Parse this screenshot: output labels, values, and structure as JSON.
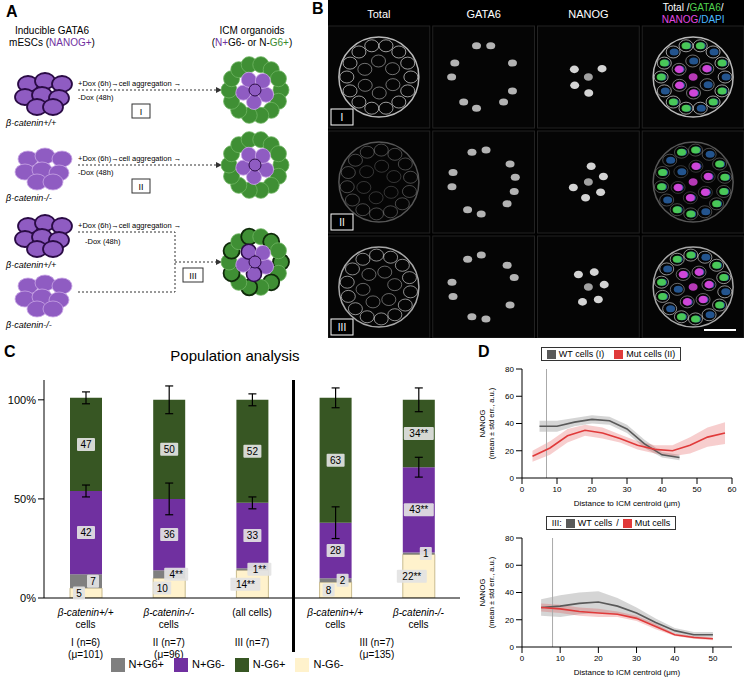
{
  "panel_a": {
    "letter": "A",
    "left_title": [
      [
        {
          "text": "Inducible GATA6",
          "color": "#000000"
        }
      ],
      [
        {
          "text": "mESCs (",
          "color": "#000000"
        },
        {
          "text": "NANOG+",
          "color": "#7030a0"
        },
        {
          "text": ")",
          "color": "#000000"
        }
      ]
    ],
    "right_title": [
      [
        {
          "text": "ICM organoids",
          "color": "#000000"
        }
      ],
      [
        {
          "text": "(",
          "color": "#000000"
        },
        {
          "text": "N+",
          "color": "#7030a0"
        },
        {
          "text": "G6- or N-",
          "color": "#000000"
        },
        {
          "text": "G6+",
          "color": "#3a8a2e"
        },
        {
          "text": ")",
          "color": "#000000"
        }
      ]
    ],
    "rows": [
      {
        "label": "I",
        "genotypes": [
          "β-catenin+/+"
        ],
        "arrow_text": [
          "+Dox (6h)→cell aggregation →",
          "-Dox (48h)"
        ]
      },
      {
        "label": "II",
        "genotypes": [
          "β-catenin-/-"
        ],
        "arrow_text": [
          "+Dox (6h)→cell aggregation →",
          "-Dox (48h)"
        ]
      },
      {
        "label": "III",
        "genotypes": [
          "β-catenin+/+",
          "β-catenin-/-"
        ],
        "arrow_text": [
          "+Dox (6h)→cell aggregation →",
          "-Dox (48h)"
        ]
      }
    ]
  },
  "panel_b": {
    "letter": "B",
    "columns": [
      "Total",
      "GATA6",
      "NANOG"
    ],
    "merge_column": [
      [
        {
          "text": "Total /",
          "color": "#ffffff"
        },
        {
          "text": "GATA6",
          "color": "#4fd14f"
        },
        {
          "text": "/",
          "color": "#ffffff"
        }
      ],
      [
        {
          "text": "NANOG",
          "color": "#e048e0"
        },
        {
          "text": "/DAPI",
          "color": "#48b8ff"
        }
      ]
    ],
    "rows": [
      "I",
      "II",
      "III"
    ]
  },
  "chart_data": [
    {
      "panel": "C",
      "type": "bar",
      "stacked": true,
      "title": "Population analysis",
      "categories": [
        "β-catenin+/+ cells",
        "β-catenin-/- cells",
        "(all cells)",
        "β-catenin+/+ cells",
        "β-catenin-/- cells"
      ],
      "groups": [
        {
          "label": "I (n=6)",
          "sub": "(μ=101)",
          "bars": [
            0
          ]
        },
        {
          "label": "II (n=7)",
          "sub": "(μ=96)",
          "bars": [
            1
          ]
        },
        {
          "label": "III (n=7)",
          "bars": [
            2
          ]
        },
        {
          "label": "III (n=7)",
          "sub": "(μ=135)",
          "bars": [
            3,
            4
          ]
        }
      ],
      "ylim": [
        0,
        110
      ],
      "yticks": [
        {
          "value": 0,
          "label": "0%"
        },
        {
          "value": 50,
          "label": "50%"
        },
        {
          "value": 100,
          "label": "100%"
        }
      ],
      "legend": "bottom",
      "data_labels": true,
      "series": [
        {
          "name": "N-G6-",
          "color": "#fff2cc",
          "values": [
            5,
            10,
            14,
            8,
            22
          ],
          "value_labels": [
            "5",
            "10",
            "14**",
            "8",
            "22**"
          ]
        },
        {
          "name": "N+G6+",
          "color": "#7f7f7f",
          "values": [
            7,
            4,
            1,
            2,
            1
          ],
          "value_labels": [
            "7",
            "4**",
            "1**",
            "2",
            "1"
          ]
        },
        {
          "name": "N+G6-",
          "color": "#7030a0",
          "values": [
            42,
            36,
            33,
            28,
            43
          ],
          "value_labels": [
            "42",
            "36",
            "33",
            "28",
            "43**"
          ],
          "errors": [
            3,
            8,
            3,
            8,
            5
          ]
        },
        {
          "name": "N-G6+",
          "color": "#375623",
          "values": [
            47,
            50,
            52,
            63,
            34
          ],
          "value_labels": [
            "47",
            "50",
            "52",
            "63",
            "34**"
          ],
          "errors": [
            3,
            7,
            3,
            5,
            6
          ]
        }
      ]
    },
    {
      "panel": "D",
      "type": "line",
      "xlabel": "Distance to ICM centroid (μm)",
      "ylabel": "NANOG (mean ± std err., a.u.)",
      "xlim": [
        0,
        60
      ],
      "xticks": [
        0,
        10,
        20,
        30,
        40,
        50,
        60
      ],
      "ylim": [
        0,
        80
      ],
      "yticks": [
        0,
        20,
        40,
        60,
        80
      ],
      "legend": "top",
      "vline_x": 7,
      "series": [
        {
          "name": "WT cells (I)",
          "color": "#595959",
          "x": [
            5,
            10,
            15,
            20,
            25,
            30,
            35,
            40,
            45
          ],
          "values": [
            38,
            38,
            41,
            43,
            42,
            36,
            25,
            17,
            15
          ],
          "errors": [
            4,
            4,
            3,
            3,
            3,
            3,
            3,
            2,
            2
          ]
        },
        {
          "name": "Mut cells (II)",
          "color": "#e03a3a",
          "x": [
            3,
            8,
            13,
            18,
            23,
            28,
            33,
            38,
            43,
            48,
            53,
            58
          ],
          "values": [
            16,
            22,
            31,
            35,
            33,
            29,
            24,
            21,
            20,
            24,
            30,
            33
          ],
          "errors": [
            4,
            5,
            5,
            4,
            4,
            3,
            3,
            3,
            4,
            6,
            7,
            8
          ]
        }
      ]
    },
    {
      "type": "line",
      "xlabel": "Distance to ICM centroid (μm)",
      "ylabel": "NANOG (mean ± std err., a.u.)",
      "xlim": [
        0,
        55
      ],
      "xticks": [
        0,
        10,
        20,
        30,
        40,
        50
      ],
      "ylim": [
        0,
        80
      ],
      "yticks": [
        0,
        20,
        40,
        60,
        80
      ],
      "legend": "top",
      "legend_title": "III:",
      "legend_separator": "/",
      "vline_x": 8,
      "series": [
        {
          "name": "WT cells",
          "color": "#595959",
          "x": [
            5,
            10,
            15,
            20,
            25,
            30,
            35,
            40,
            45,
            50
          ],
          "values": [
            29,
            30,
            32,
            33,
            30,
            25,
            18,
            12,
            9,
            9
          ],
          "errors": [
            6,
            8,
            8,
            8,
            6,
            4,
            3,
            2,
            2,
            2
          ]
        },
        {
          "name": "Mut cells",
          "color": "#e03a3a",
          "x": [
            5,
            10,
            15,
            20,
            25,
            30,
            35,
            40,
            45,
            50
          ],
          "values": [
            29,
            28,
            26,
            25,
            24,
            21,
            15,
            9,
            7,
            6
          ],
          "errors": [
            3,
            3,
            3,
            3,
            2,
            2,
            2,
            1,
            1,
            1
          ]
        }
      ]
    }
  ]
}
